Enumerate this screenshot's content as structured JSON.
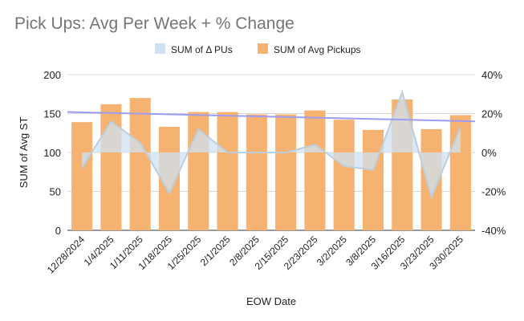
{
  "chart_data": {
    "type": "bar",
    "title": "Pick Ups: Avg Per Week + % Change",
    "xlabel": "EOW Date",
    "ylabel": "SUM of Avg ST",
    "categories": [
      "12/28/2024",
      "1/4/2025",
      "1/11/2025",
      "1/18/2025",
      "1/25/2025",
      "2/1/2025",
      "2/8/2025",
      "2/15/2025",
      "2/23/2025",
      "3/2/2025",
      "3/8/2025",
      "3/16/2025",
      "3/23/2025",
      "3/30/2025"
    ],
    "series": [
      {
        "name": "SUM of Avg Pickups",
        "axis": "left",
        "kind": "bar",
        "color": "#f5b270",
        "values": [
          139,
          162,
          170,
          133,
          152,
          152,
          149,
          149,
          154,
          142,
          129,
          168,
          130,
          148
        ]
      },
      {
        "name": "SUM of Δ PUs",
        "axis": "right",
        "kind": "area",
        "color": "#cfe2f3",
        "line_color": "#bccedd",
        "values": [
          -8,
          16,
          5,
          -21,
          12,
          0,
          0,
          0,
          4,
          -7,
          -9,
          31,
          -23,
          13
        ]
      }
    ],
    "trendline": {
      "series": "SUM of Avg Pickups",
      "color": "#9e9cf2",
      "start": 152,
      "end": 140
    },
    "y_left": {
      "min": 0,
      "max": 200,
      "ticks": [
        0,
        50,
        100,
        150,
        200
      ]
    },
    "y_right": {
      "min": -40,
      "max": 40,
      "ticks": [
        "-40%",
        "-20%",
        "0%",
        "20%",
        "40%"
      ]
    },
    "legend_position": "top-center",
    "grid": true
  }
}
